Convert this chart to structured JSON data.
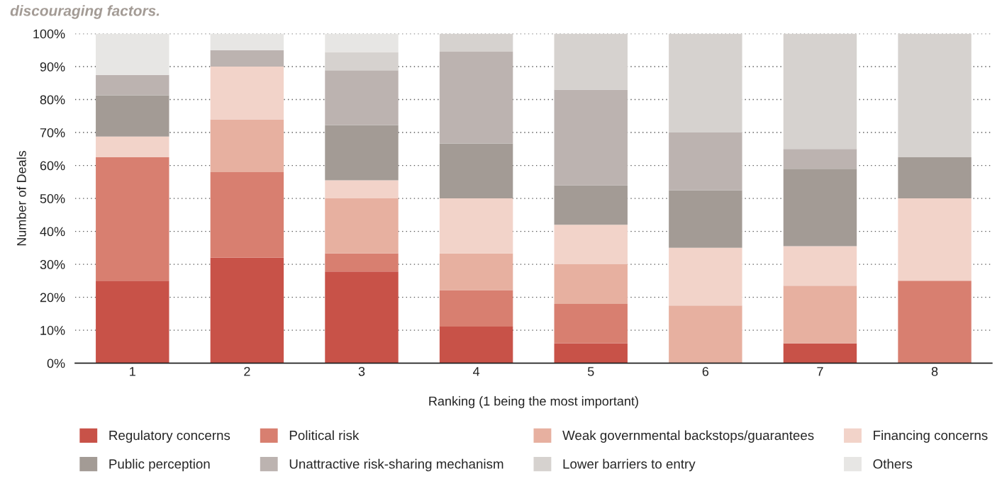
{
  "chart_data": {
    "type": "bar",
    "title": "discouraging factors.",
    "xlabel": "Ranking (1 being the most important)",
    "ylabel": "Number of Deals",
    "categories": [
      "1",
      "2",
      "3",
      "4",
      "5",
      "6",
      "7",
      "8"
    ],
    "stacked": true,
    "series": [
      {
        "name": "Regulatory concerns",
        "color": "#c85248",
        "values": [
          25,
          32,
          27.8,
          11.1,
          6,
          0,
          6,
          0
        ]
      },
      {
        "name": "Political risk",
        "color": "#d87f70",
        "values": [
          37.5,
          26,
          5.5,
          11.1,
          12,
          0,
          0,
          25
        ]
      },
      {
        "name": "Weak governmental backstops/guarantees",
        "color": "#e7b0a0",
        "values": [
          0,
          16,
          16.7,
          11.1,
          12,
          17.5,
          17.5,
          0
        ]
      },
      {
        "name": "Financing concerns",
        "color": "#f2d3c9",
        "values": [
          6.3,
          16,
          5.5,
          16.7,
          12,
          17.5,
          12,
          25
        ]
      },
      {
        "name": "Public perception",
        "color": "#a39b95",
        "values": [
          12.5,
          0,
          16.7,
          16.7,
          12,
          17.5,
          23.5,
          12.5
        ]
      },
      {
        "name": "Unattractive risk-sharing mechanism",
        "color": "#bcb3b0",
        "values": [
          6.2,
          5,
          16.7,
          27.8,
          29,
          17.5,
          6,
          0
        ]
      },
      {
        "name": "Lower barriers to entry",
        "color": "#d6d2cf",
        "values": [
          0,
          0,
          5.5,
          5.5,
          17,
          30,
          35,
          37.5
        ]
      },
      {
        "name": "Others",
        "color": "#e7e6e4",
        "values": [
          12.5,
          5,
          5.6,
          0,
          0,
          0,
          0,
          0
        ]
      }
    ],
    "ylim": [
      0,
      100
    ],
    "yticks": [
      {
        "value": 0,
        "label": "0%"
      },
      {
        "value": 10,
        "label": "10%"
      },
      {
        "value": 20,
        "label": "20%"
      },
      {
        "value": 30,
        "label": "30%"
      },
      {
        "value": 40,
        "label": "40%"
      },
      {
        "value": 50,
        "label": "50%"
      },
      {
        "value": 60,
        "label": "60%"
      },
      {
        "value": 70,
        "label": "70%"
      },
      {
        "value": 80,
        "label": "80%"
      },
      {
        "value": 90,
        "label": "90%"
      },
      {
        "value": 100,
        "label": "100%"
      }
    ],
    "grid": "y",
    "legend": "bottom"
  }
}
